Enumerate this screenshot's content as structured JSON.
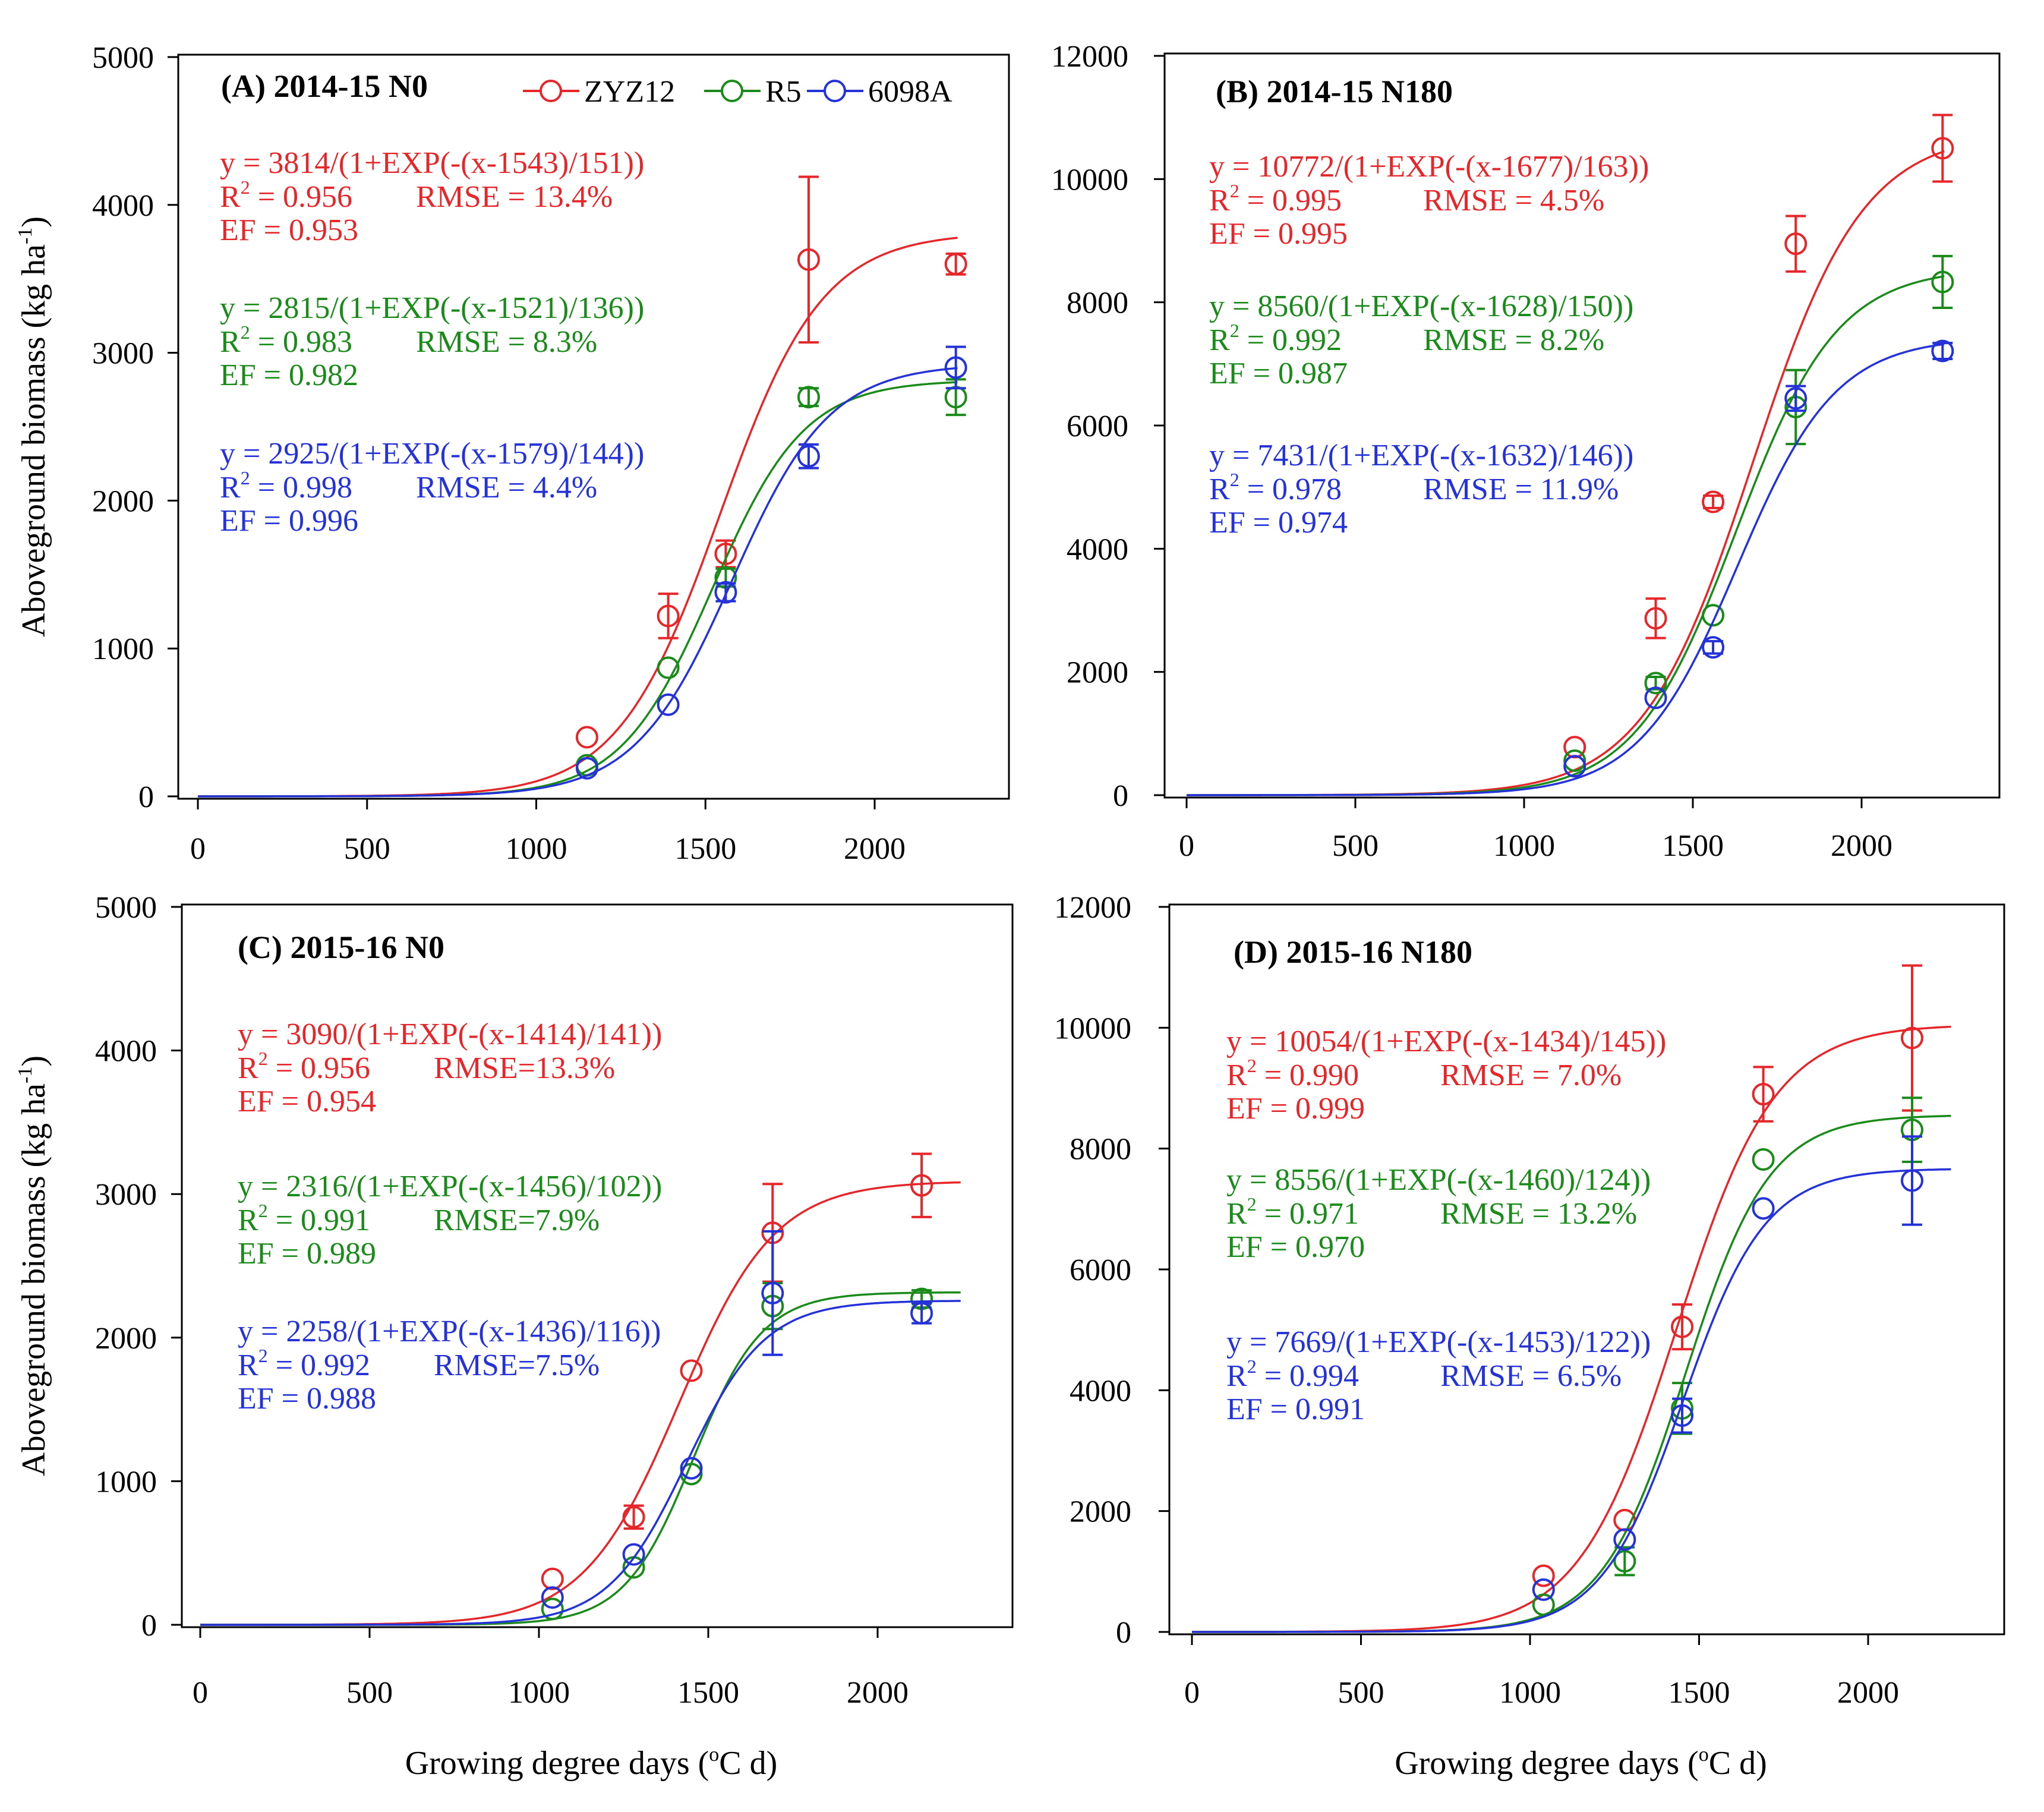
{
  "legend": [
    {
      "name": "ZYZ12",
      "color": "#e5262a"
    },
    {
      "name": "R5",
      "color": "#1a8a1a"
    },
    {
      "name": "6098A",
      "color": "#2432d8"
    }
  ],
  "chart_data": [
    {
      "id": "A",
      "type": "scatter",
      "title": "(A) 2014-15 N0",
      "ylabel": "Aboveground biomass (kg ha",
      "ylabel_sup": "-1",
      "ylabel_end": ")",
      "xlim": [
        0,
        2400
      ],
      "ylim": [
        0,
        5000
      ],
      "xticks": [
        0,
        500,
        1000,
        1500,
        2000
      ],
      "yticks": [
        0,
        1000,
        2000,
        3000,
        4000,
        5000
      ],
      "series": [
        {
          "name": "ZYZ12",
          "color": "#e5262a",
          "a": 3814,
          "b": 1543,
          "c": 151,
          "x": [
            1150,
            1390,
            1560,
            1805,
            2240
          ],
          "y": [
            400,
            1220,
            1640,
            3630,
            3600
          ],
          "err": [
            0,
            150,
            90,
            560,
            70
          ],
          "eq": "y = 3814/(1+EXP(-(x-1543)/151))",
          "r2_label": "R",
          "r2_sup": "2",
          "r2": " = 0.956",
          "rmse": "RMSE = 13.4%",
          "ef": "EF = 0.953"
        },
        {
          "name": "R5",
          "color": "#1a8a1a",
          "a": 2815,
          "b": 1521,
          "c": 136,
          "x": [
            1150,
            1390,
            1560,
            1805,
            2240
          ],
          "y": [
            210,
            870,
            1480,
            2700,
            2700
          ],
          "err": [
            0,
            0,
            60,
            60,
            120
          ],
          "eq": "y = 2815/(1+EXP(-(x-1521)/136))",
          "r2_label": "R",
          "r2_sup": "2",
          "r2": " = 0.983",
          "rmse": "RMSE = 8.3%",
          "ef": "EF = 0.982"
        },
        {
          "name": "6098A",
          "color": "#2432d8",
          "a": 2925,
          "b": 1579,
          "c": 144,
          "x": [
            1150,
            1390,
            1560,
            1805,
            2240
          ],
          "y": [
            190,
            620,
            1380,
            2300,
            2900
          ],
          "err": [
            0,
            0,
            60,
            80,
            140
          ],
          "eq": "y = 2925/(1+EXP(-(x-1579)/144))",
          "r2_label": "R",
          "r2_sup": "2",
          "r2": " = 0.998",
          "rmse": "RMSE = 4.4%",
          "ef": "EF = 0.996"
        }
      ]
    },
    {
      "id": "B",
      "type": "scatter",
      "title": "(B) 2014-15 N180",
      "ylabel": "",
      "xlim": [
        0,
        2400
      ],
      "ylim": [
        0,
        12000
      ],
      "xticks": [
        0,
        500,
        1000,
        1500,
        2000
      ],
      "yticks": [
        0,
        2000,
        4000,
        6000,
        8000,
        10000,
        12000
      ],
      "series": [
        {
          "name": "ZYZ12",
          "color": "#e5262a",
          "a": 10772,
          "b": 1677,
          "c": 163,
          "x": [
            1150,
            1390,
            1560,
            1805,
            2240
          ],
          "y": [
            780,
            2870,
            4760,
            8950,
            10500
          ],
          "err": [
            0,
            320,
            100,
            450,
            540
          ],
          "eq": "y = 10772/(1+EXP(-(x-1677)/163))",
          "r2_label": "R",
          "r2_sup": "2",
          "r2": " = 0.995",
          "rmse": "RMSE = 4.5%",
          "ef": "EF = 0.995"
        },
        {
          "name": "R5",
          "color": "#1a8a1a",
          "a": 8560,
          "b": 1628,
          "c": 150,
          "x": [
            1150,
            1390,
            1560,
            1805,
            2240
          ],
          "y": [
            560,
            1820,
            2920,
            6300,
            8330
          ],
          "err": [
            0,
            100,
            0,
            600,
            420
          ],
          "eq": "y = 8560/(1+EXP(-(x-1628)/150))",
          "r2_label": "R",
          "r2_sup": "2",
          "r2": " = 0.992",
          "rmse": "RMSE = 8.2%",
          "ef": "EF = 0.987"
        },
        {
          "name": "6098A",
          "color": "#2432d8",
          "a": 7431,
          "b": 1632,
          "c": 146,
          "x": [
            1150,
            1390,
            1560,
            1805,
            2240
          ],
          "y": [
            470,
            1580,
            2400,
            6440,
            7210
          ],
          "err": [
            0,
            0,
            100,
            200,
            130
          ],
          "eq": "y = 7431/(1+EXP(-(x-1632)/146))",
          "r2_label": "R",
          "r2_sup": "2",
          "r2": " = 0.978",
          "rmse": "RMSE = 11.9%",
          "ef": "EF = 0.974"
        }
      ]
    },
    {
      "id": "C",
      "type": "scatter",
      "title": "(C) 2015-16 N0",
      "ylabel": "Aboveground biomass (kg ha",
      "ylabel_sup": "-1",
      "ylabel_end": ")",
      "xlabel": "Growing degree days (",
      "xlabel_sup": "o",
      "xlabel_end": "C d)",
      "xlim": [
        0,
        2400
      ],
      "ylim": [
        0,
        5000
      ],
      "xticks": [
        0,
        500,
        1000,
        1500,
        2000
      ],
      "yticks": [
        0,
        1000,
        2000,
        3000,
        4000,
        5000
      ],
      "series": [
        {
          "name": "ZYZ12",
          "color": "#e5262a",
          "a": 3090,
          "b": 1414,
          "c": 141,
          "x": [
            1040,
            1280,
            1450,
            1690,
            2130
          ],
          "y": [
            320,
            750,
            1770,
            2730,
            3060
          ],
          "err": [
            0,
            80,
            0,
            340,
            220
          ],
          "eq": "y = 3090/(1+EXP(-(x-1414)/141))",
          "r2_label": "R",
          "r2_sup": "2",
          "r2": " = 0.956",
          "rmse": "RMSE=13.3%",
          "ef": "EF = 0.954"
        },
        {
          "name": "R5",
          "color": "#1a8a1a",
          "a": 2316,
          "b": 1456,
          "c": 102,
          "x": [
            1040,
            1280,
            1450,
            1690,
            2130
          ],
          "y": [
            110,
            400,
            1050,
            2220,
            2270
          ],
          "err": [
            0,
            0,
            0,
            160,
            60
          ],
          "eq": "y = 2316/(1+EXP(-(x-1456)/102))",
          "r2_label": "R",
          "r2_sup": "2",
          "r2": " = 0.991",
          "rmse": "RMSE=7.9%",
          "ef": "EF = 0.989"
        },
        {
          "name": "6098A",
          "color": "#2432d8",
          "a": 2258,
          "b": 1436,
          "c": 116,
          "x": [
            1040,
            1280,
            1450,
            1690,
            2130
          ],
          "y": [
            190,
            490,
            1090,
            2310,
            2170
          ],
          "err": [
            0,
            0,
            0,
            430,
            70
          ],
          "eq": "y = 2258/(1+EXP(-(x-1436)/116))",
          "r2_label": "R",
          "r2_sup": "2",
          "r2": " = 0.992",
          "rmse": "RMSE=7.5%",
          "ef": "EF = 0.988"
        }
      ]
    },
    {
      "id": "D",
      "type": "scatter",
      "title": "(D) 2015-16 N180",
      "ylabel": "",
      "xlabel": "Growing degree days (",
      "xlabel_sup": "o",
      "xlabel_end": "C d)",
      "xlim": [
        0,
        2400
      ],
      "ylim": [
        0,
        12000
      ],
      "xticks": [
        0,
        500,
        1000,
        1500,
        2000
      ],
      "yticks": [
        0,
        2000,
        4000,
        6000,
        8000,
        10000,
        12000
      ],
      "series": [
        {
          "name": "ZYZ12",
          "color": "#e5262a",
          "a": 10054,
          "b": 1434,
          "c": 145,
          "x": [
            1040,
            1280,
            1450,
            1690,
            2130
          ],
          "y": [
            930,
            1850,
            5050,
            8900,
            9830
          ],
          "err": [
            0,
            0,
            370,
            450,
            1200
          ],
          "eq": "y = 10054/(1+EXP(-(x-1434)/145))",
          "r2_label": "R",
          "r2_sup": "2",
          "r2": " = 0.990",
          "rmse": "RMSE = 7.0%",
          "ef": "EF = 0.999"
        },
        {
          "name": "R5",
          "color": "#1a8a1a",
          "a": 8556,
          "b": 1460,
          "c": 124,
          "x": [
            1040,
            1280,
            1450,
            1690,
            2130
          ],
          "y": [
            450,
            1170,
            3700,
            7820,
            8310
          ],
          "err": [
            0,
            230,
            420,
            0,
            530
          ],
          "eq": "y = 8556/(1+EXP(-(x-1460)/124))",
          "r2_label": "R",
          "r2_sup": "2",
          "r2": " = 0.971",
          "rmse": "RMSE = 13.2%",
          "ef": "EF = 0.970"
        },
        {
          "name": "6098A",
          "color": "#2432d8",
          "a": 7669,
          "b": 1453,
          "c": 122,
          "x": [
            1040,
            1280,
            1450,
            1690,
            2130
          ],
          "y": [
            700,
            1530,
            3580,
            7010,
            7470
          ],
          "err": [
            0,
            0,
            280,
            0,
            730
          ],
          "eq": "y = 7669/(1+EXP(-(x-1453)/122))",
          "r2_label": "R",
          "r2_sup": "2",
          "r2": " = 0.994",
          "rmse": "RMSE = 6.5%",
          "ef": "EF = 0.991"
        }
      ]
    }
  ]
}
